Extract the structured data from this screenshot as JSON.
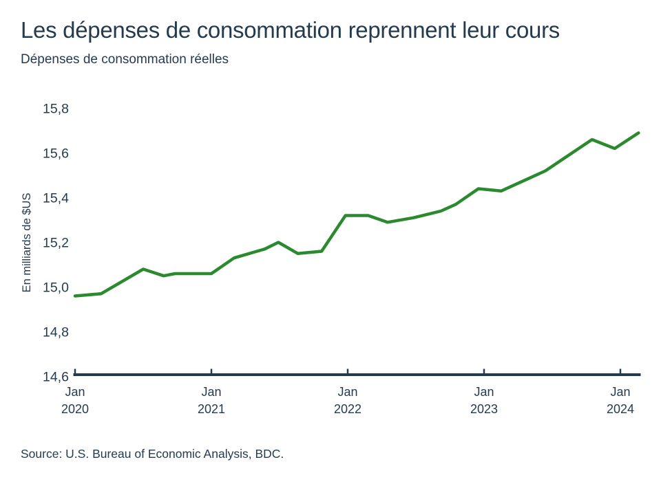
{
  "header": {
    "title": "Les dépenses de consommation reprennent leur cours",
    "subtitle": "Dépenses de consommation réelles"
  },
  "footer": {
    "source": "Source: U.S. Bureau of Economic Analysis, BDC."
  },
  "colors": {
    "text": "#243B4F",
    "axis": "#243B4F",
    "line": "#2B8A2E",
    "background": "#FFFFFF"
  },
  "chart_data": {
    "type": "line",
    "title": "Les dépenses de consommation reprennent leur cours",
    "subtitle": "Dépenses de consommation réelles",
    "xlabel": "",
    "ylabel": "En milliards de $US",
    "ylim": [
      14.6,
      15.8
    ],
    "grid": false,
    "legend_position": "none",
    "y_ticks": [
      "14,6",
      "14,8",
      "15,0",
      "15,2",
      "15,4",
      "15,6",
      "15,8"
    ],
    "y_tick_values": [
      14.6,
      14.8,
      15.0,
      15.2,
      15.4,
      15.6,
      15.8
    ],
    "x_tick_month_label": "Jan",
    "x_ticks": [
      {
        "line1": "Jan",
        "line2": "2020"
      },
      {
        "line1": "Jan",
        "line2": "2021"
      },
      {
        "line1": "Jan",
        "line2": "2022"
      },
      {
        "line1": "Jan",
        "line2": "2023"
      },
      {
        "line1": "Jan",
        "line2": "2024"
      }
    ],
    "x_tick_months": [
      0,
      12,
      24,
      36,
      48
    ],
    "x_range_months": [
      0,
      49.6
    ],
    "series": [
      {
        "name": "Dépenses de consommation réelles",
        "color": "#2B8A2E",
        "points": [
          {
            "date": "2020-01",
            "m": 0,
            "value": 14.96
          },
          {
            "date": "2020-03",
            "m": 2.3,
            "value": 14.97
          },
          {
            "date": "2020-07",
            "m": 6,
            "value": 15.08
          },
          {
            "date": "2020-09",
            "m": 7.8,
            "value": 15.05
          },
          {
            "date": "2020-10",
            "m": 8.8,
            "value": 15.06
          },
          {
            "date": "2021-01",
            "m": 12,
            "value": 15.06
          },
          {
            "date": "2021-03",
            "m": 14,
            "value": 15.13
          },
          {
            "date": "2021-06",
            "m": 16.7,
            "value": 15.17
          },
          {
            "date": "2021-07",
            "m": 17.9,
            "value": 15.2
          },
          {
            "date": "2021-09",
            "m": 19.6,
            "value": 15.15
          },
          {
            "date": "2021-11",
            "m": 21.7,
            "value": 15.16
          },
          {
            "date": "2022-01",
            "m": 23.8,
            "value": 15.32
          },
          {
            "date": "2022-03",
            "m": 25.8,
            "value": 15.32
          },
          {
            "date": "2022-04",
            "m": 27.5,
            "value": 15.29
          },
          {
            "date": "2022-07",
            "m": 29.8,
            "value": 15.31
          },
          {
            "date": "2022-09",
            "m": 32.2,
            "value": 15.34
          },
          {
            "date": "2022-10",
            "m": 33.5,
            "value": 15.37
          },
          {
            "date": "2022-12",
            "m": 35.5,
            "value": 15.44
          },
          {
            "date": "2023-02",
            "m": 37.5,
            "value": 15.43
          },
          {
            "date": "2023-06",
            "m": 41.4,
            "value": 15.52
          },
          {
            "date": "2023-10",
            "m": 45.5,
            "value": 15.66
          },
          {
            "date": "2023-12",
            "m": 47.5,
            "value": 15.62
          },
          {
            "date": "2024-02",
            "m": 49.6,
            "value": 15.69
          }
        ]
      }
    ]
  }
}
